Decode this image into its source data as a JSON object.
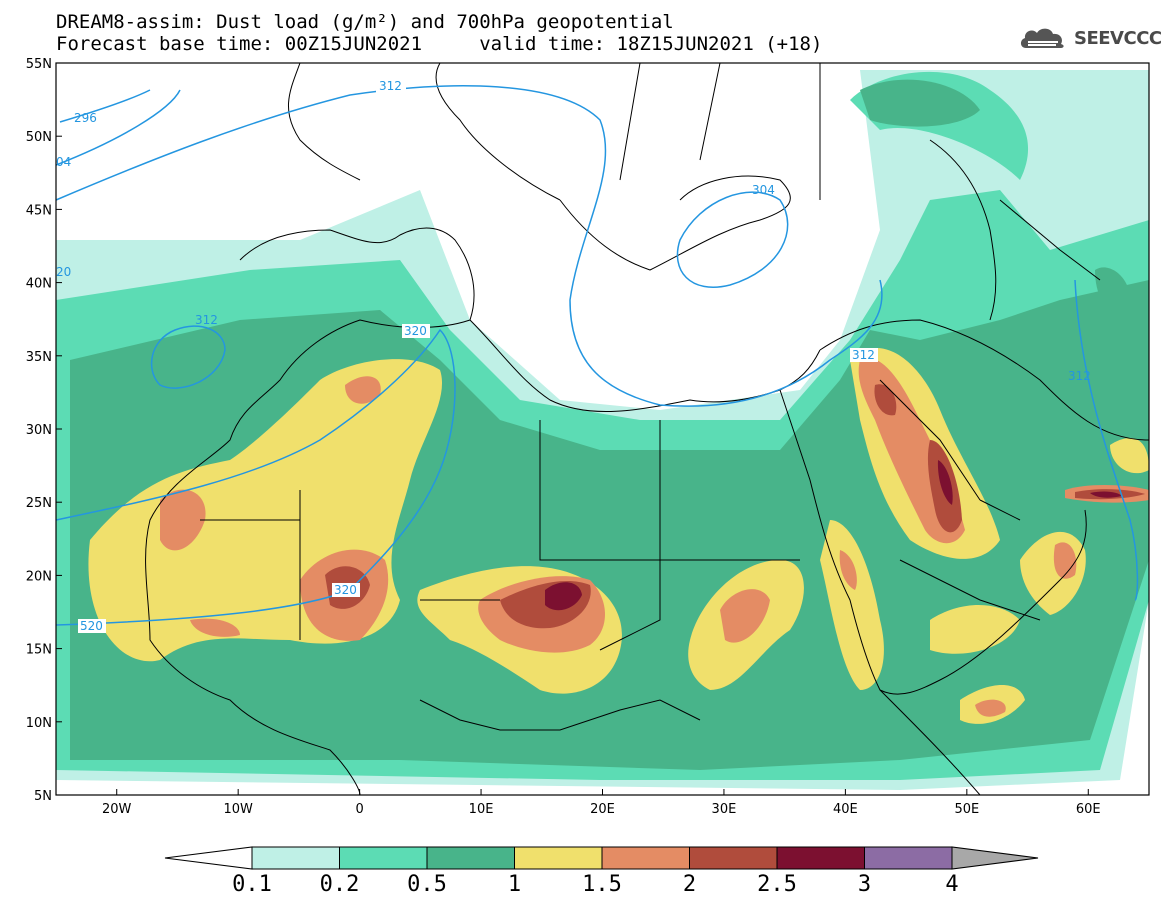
{
  "header": {
    "line1": "DREAM8-assim: Dust load (g/m²) and 700hPa geopotential",
    "line2": "Forecast base time: 00Z15JUN2021     valid time: 18Z15JUN2021 (+18)"
  },
  "logo": {
    "text": "SEEVCCC",
    "icon": "cloud-icon"
  },
  "map": {
    "lon_range": [
      -25,
      65
    ],
    "lat_range": [
      5,
      55
    ],
    "lon_ticks": [
      {
        "value": -20,
        "label": "20W"
      },
      {
        "value": -10,
        "label": "10W"
      },
      {
        "value": 0,
        "label": "0"
      },
      {
        "value": 10,
        "label": "10E"
      },
      {
        "value": 20,
        "label": "20E"
      },
      {
        "value": 30,
        "label": "30E"
      },
      {
        "value": 40,
        "label": "40E"
      },
      {
        "value": 50,
        "label": "50E"
      },
      {
        "value": 60,
        "label": "60E"
      }
    ],
    "lat_ticks": [
      {
        "value": 5,
        "label": "5N"
      },
      {
        "value": 10,
        "label": "10N"
      },
      {
        "value": 15,
        "label": "15N"
      },
      {
        "value": 20,
        "label": "20N"
      },
      {
        "value": 25,
        "label": "25N"
      },
      {
        "value": 30,
        "label": "30N"
      },
      {
        "value": 35,
        "label": "35N"
      },
      {
        "value": 40,
        "label": "40N"
      },
      {
        "value": 45,
        "label": "45N"
      },
      {
        "value": 50,
        "label": "50N"
      },
      {
        "value": 55,
        "label": "55N"
      }
    ],
    "contour_labels": [
      "296",
      "04",
      "312",
      "20",
      "312",
      "320",
      "320",
      "520",
      "304",
      "312",
      "312"
    ]
  },
  "colorbar": {
    "levels": [
      "0.1",
      "0.2",
      "0.5",
      "1",
      "1.5",
      "2",
      "2.5",
      "3",
      "4"
    ],
    "colors": [
      "#ffffff",
      "#bff0e6",
      "#5cdcb4",
      "#48b48a",
      "#f0e06c",
      "#e48c64",
      "#b04c3c",
      "#7c1030",
      "#8c6ca4",
      "#a8a8a8"
    ]
  },
  "colors": {
    "low": "#bff0e6",
    "light_green": "#5cdcb4",
    "green": "#48b48a",
    "yellow": "#f0e06c",
    "orange": "#e48c64",
    "red": "#b04c3c",
    "dark_red": "#7c1030",
    "contour": "#2496e0"
  }
}
